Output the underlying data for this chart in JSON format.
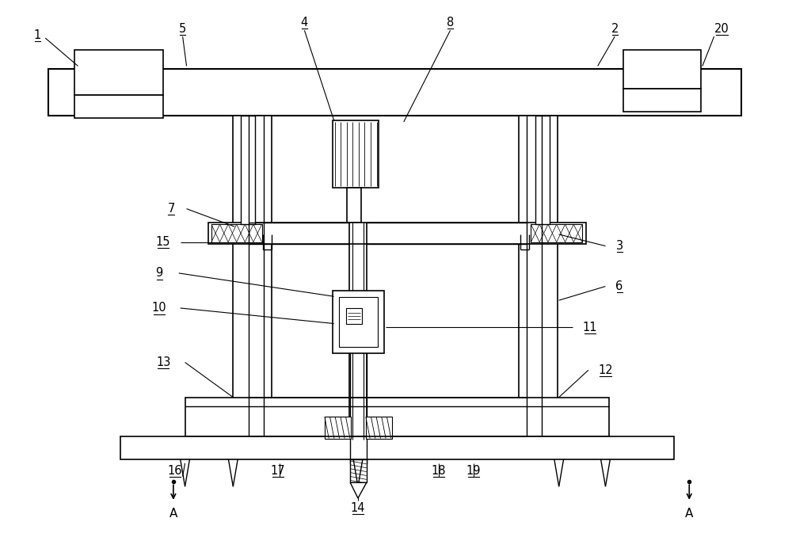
{
  "bg_color": "#ffffff",
  "line_color": "#000000",
  "lw": 1.0,
  "tlw": 1.5,
  "figsize": [
    10.0,
    6.78
  ],
  "dpi": 100
}
